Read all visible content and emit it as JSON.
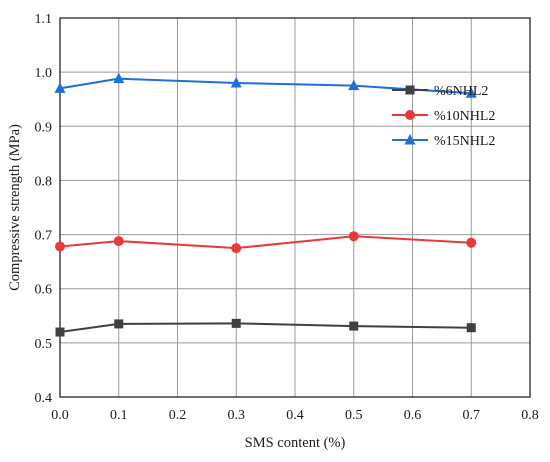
{
  "chart_data": {
    "type": "line",
    "title": "",
    "xlabel": "SMS content (%)",
    "ylabel": "Compressive strength (MPa)",
    "xlim": [
      0.0,
      0.8
    ],
    "ylim": [
      0.4,
      1.1
    ],
    "xticks": [
      0.0,
      0.1,
      0.2,
      0.3,
      0.4,
      0.5,
      0.6,
      0.7,
      0.8
    ],
    "yticks": [
      0.4,
      0.5,
      0.6,
      0.7,
      0.8,
      0.9,
      1.0,
      1.1
    ],
    "xtick_labels": [
      "0.0",
      "0.1",
      "0.2",
      "0.3",
      "0.4",
      "0.5",
      "0.6",
      "0.7",
      "0.8"
    ],
    "ytick_labels": [
      "0.4",
      "0.5",
      "0.6",
      "0.7",
      "0.8",
      "0.9",
      "1.0",
      "1.1"
    ],
    "grid": true,
    "legend_position": "right",
    "series": [
      {
        "name": "%6NHL2",
        "color": "#404040",
        "marker": "square",
        "x": [
          0.0,
          0.1,
          0.3,
          0.5,
          0.7
        ],
        "y": [
          0.52,
          0.535,
          0.536,
          0.531,
          0.528
        ]
      },
      {
        "name": "%10NHL2",
        "color": "#e8393b",
        "marker": "circle",
        "x": [
          0.0,
          0.1,
          0.3,
          0.5,
          0.7
        ],
        "y": [
          0.678,
          0.688,
          0.675,
          0.697,
          0.685
        ]
      },
      {
        "name": "%15NHL2",
        "color": "#1f6fd6",
        "marker": "triangle",
        "x": [
          0.0,
          0.1,
          0.3,
          0.5,
          0.7
        ],
        "y": [
          0.97,
          0.988,
          0.98,
          0.975,
          0.961
        ]
      }
    ]
  }
}
